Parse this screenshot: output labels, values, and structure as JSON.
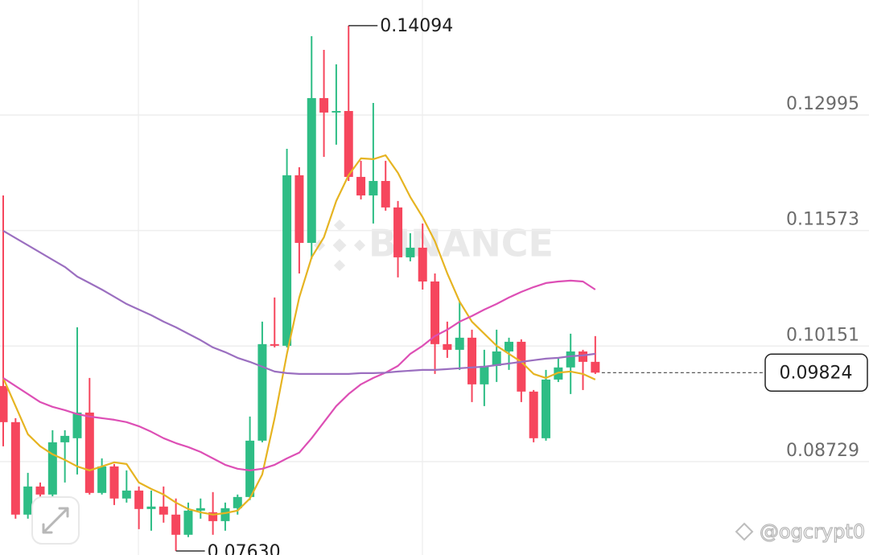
{
  "chart_data": {
    "type": "candlestick",
    "up_color": "#2ebd85",
    "down_color": "#f6465d",
    "open": [
      0.0966,
      0.09215,
      0.08077,
      0.08423,
      0.08324,
      0.08967,
      0.09017,
      0.09333,
      0.08344,
      0.0867,
      0.08275,
      0.08373,
      0.08146,
      0.08176,
      0.08077,
      0.07829,
      0.08126,
      0.08106,
      0.07997,
      0.08156,
      0.08294,
      0.08987,
      0.10175,
      0.10155,
      0.12253,
      0.11421,
      0.13203,
      0.13025,
      0.13044,
      0.12233,
      0.12005,
      0.12183,
      0.11857,
      0.11243,
      0.11362,
      0.10946,
      0.10175,
      0.10105,
      0.10254,
      0.0968,
      0.09907,
      0.10085,
      0.10204,
      0.09591,
      0.09017,
      0.09739,
      0.09888,
      0.10085,
      0.09957
    ],
    "high": [
      0.12005,
      0.09264,
      0.08591,
      0.08472,
      0.09116,
      0.09116,
      0.10382,
      0.09759,
      0.08769,
      0.087,
      0.08621,
      0.08423,
      0.08373,
      0.08423,
      0.08275,
      0.08225,
      0.08275,
      0.08354,
      0.08225,
      0.08324,
      0.09284,
      0.10452,
      0.10749,
      0.12579,
      0.12352,
      0.13965,
      0.13796,
      0.13618,
      0.14094,
      0.12431,
      0.13143,
      0.12431,
      0.11936,
      0.1154,
      0.11659,
      0.11045,
      0.10452,
      0.10699,
      0.10353,
      0.10105,
      0.10353,
      0.10254,
      0.10234,
      0.0961,
      0.09858,
      0.10006,
      0.10303,
      0.10105,
      0.10274
    ],
    "low": [
      0.08918,
      0.08027,
      0.08027,
      0.08077,
      0.08275,
      0.08472,
      0.08571,
      0.08324,
      0.08324,
      0.08195,
      0.08225,
      0.07898,
      0.07879,
      0.07978,
      0.0763,
      0.078,
      0.08027,
      0.07829,
      0.07879,
      0.08077,
      0.08255,
      0.08967,
      0.10135,
      0.10135,
      0.11045,
      0.11224,
      0.1248,
      0.12629,
      0.12183,
      0.11956,
      0.11659,
      0.11817,
      0.10996,
      0.11194,
      0.10847,
      0.09808,
      0.10006,
      0.09858,
      0.09462,
      0.09413,
      0.09709,
      0.09858,
      0.09462,
      0.08967,
      0.08987,
      0.09709,
      0.09561,
      0.0961,
      0.09808
    ],
    "close": [
      0.09215,
      0.08077,
      0.08423,
      0.08324,
      0.08967,
      0.09046,
      0.09333,
      0.08344,
      0.0867,
      0.08275,
      0.08373,
      0.08146,
      0.08176,
      0.08077,
      0.07829,
      0.08126,
      0.08156,
      0.07997,
      0.08156,
      0.08294,
      0.08987,
      0.10175,
      0.10155,
      0.12253,
      0.11421,
      0.13203,
      0.13025,
      0.13044,
      0.12233,
      0.12005,
      0.12183,
      0.11857,
      0.11243,
      0.11362,
      0.10946,
      0.10175,
      0.10105,
      0.10254,
      0.0968,
      0.09907,
      0.10085,
      0.10204,
      0.09591,
      0.09017,
      0.09739,
      0.09888,
      0.10085,
      0.09957,
      0.09824
    ],
    "moving_averages": [
      {
        "color": "#e6b422",
        "values": [
          0.09759,
          0.09413,
          0.09066,
          0.08918,
          0.08819,
          0.0875,
          0.0867,
          0.08621,
          0.0867,
          0.0872,
          0.087,
          0.08472,
          0.08393,
          0.08324,
          0.08225,
          0.08146,
          0.08106,
          0.08077,
          0.08096,
          0.08126,
          0.08275,
          0.08571,
          0.09264,
          0.10056,
          0.10749,
          0.11243,
          0.11491,
          0.11936,
          0.12253,
          0.12461,
          0.12451,
          0.125,
          0.12282,
          0.11986,
          0.11738,
          0.11441,
          0.11045,
          0.10699,
          0.10452,
          0.10303,
          0.10155,
          0.10056,
          0.09957,
          0.09808,
          0.09759,
          0.09824,
          0.09838,
          0.09808,
          0.09739
        ]
      },
      {
        "color": "#dd4fb5",
        "values": [
          0.09759,
          0.0966,
          0.09561,
          0.09462,
          0.09403,
          0.09363,
          0.09314,
          0.09284,
          0.09264,
          0.09244,
          0.09215,
          0.09165,
          0.09096,
          0.09017,
          0.08957,
          0.08908,
          0.08848,
          0.08769,
          0.0869,
          0.08641,
          0.08621,
          0.08641,
          0.0869,
          0.08769,
          0.08839,
          0.09017,
          0.09215,
          0.09413,
          0.09561,
          0.0968,
          0.09759,
          0.09824,
          0.09907,
          0.10056,
          0.10155,
          0.10274,
          0.10353,
          0.10452,
          0.10521,
          0.106,
          0.10669,
          0.10749,
          0.10818,
          0.10877,
          0.10927,
          0.10946,
          0.10956,
          0.10946,
          0.10847
        ]
      },
      {
        "color": "#9b6fc0",
        "values": [
          0.1157,
          0.11481,
          0.11392,
          0.11303,
          0.11214,
          0.11125,
          0.11006,
          0.10927,
          0.10847,
          0.10758,
          0.10669,
          0.106,
          0.10531,
          0.10452,
          0.10382,
          0.10303,
          0.10224,
          0.10135,
          0.10076,
          0.10006,
          0.09957,
          0.09897,
          0.09838,
          0.09818,
          0.09808,
          0.09808,
          0.09808,
          0.09808,
          0.09808,
          0.09818,
          0.09818,
          0.09824,
          0.09838,
          0.09848,
          0.09858,
          0.09858,
          0.09868,
          0.09878,
          0.09888,
          0.09897,
          0.09917,
          0.09937,
          0.09957,
          0.09977,
          0.09996,
          0.10006,
          0.10026,
          0.10036,
          0.10056
        ]
      }
    ],
    "ylim": [
      0.0758,
      0.1441
    ],
    "yticks": [
      0.12995,
      0.11573,
      0.10151,
      0.08729
    ],
    "grid": true,
    "max_label": "0.14094",
    "min_label": "0.07630"
  },
  "overlay": {
    "watermark": "BINANCE",
    "credit": "@ogcrypt0"
  }
}
